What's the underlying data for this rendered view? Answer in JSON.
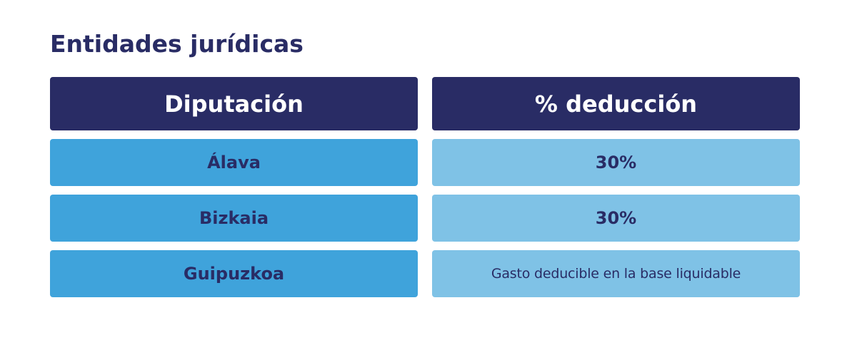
{
  "title": "Entidades jurídicas",
  "table": {
    "headers": [
      "Diputación",
      "% deducción"
    ],
    "rows": [
      {
        "diputacion": "Álava",
        "deduccion": "30%"
      },
      {
        "diputacion": "Bizkaia",
        "deduccion": "30%"
      },
      {
        "diputacion": "Guipuzkoa",
        "deduccion": "Gasto deducible en la base liquidable"
      }
    ]
  },
  "colors": {
    "header_bg": "#292c65",
    "left_cell_bg": "#3fa3db",
    "right_cell_bg": "#7fc2e6",
    "text_dark": "#292c65"
  }
}
